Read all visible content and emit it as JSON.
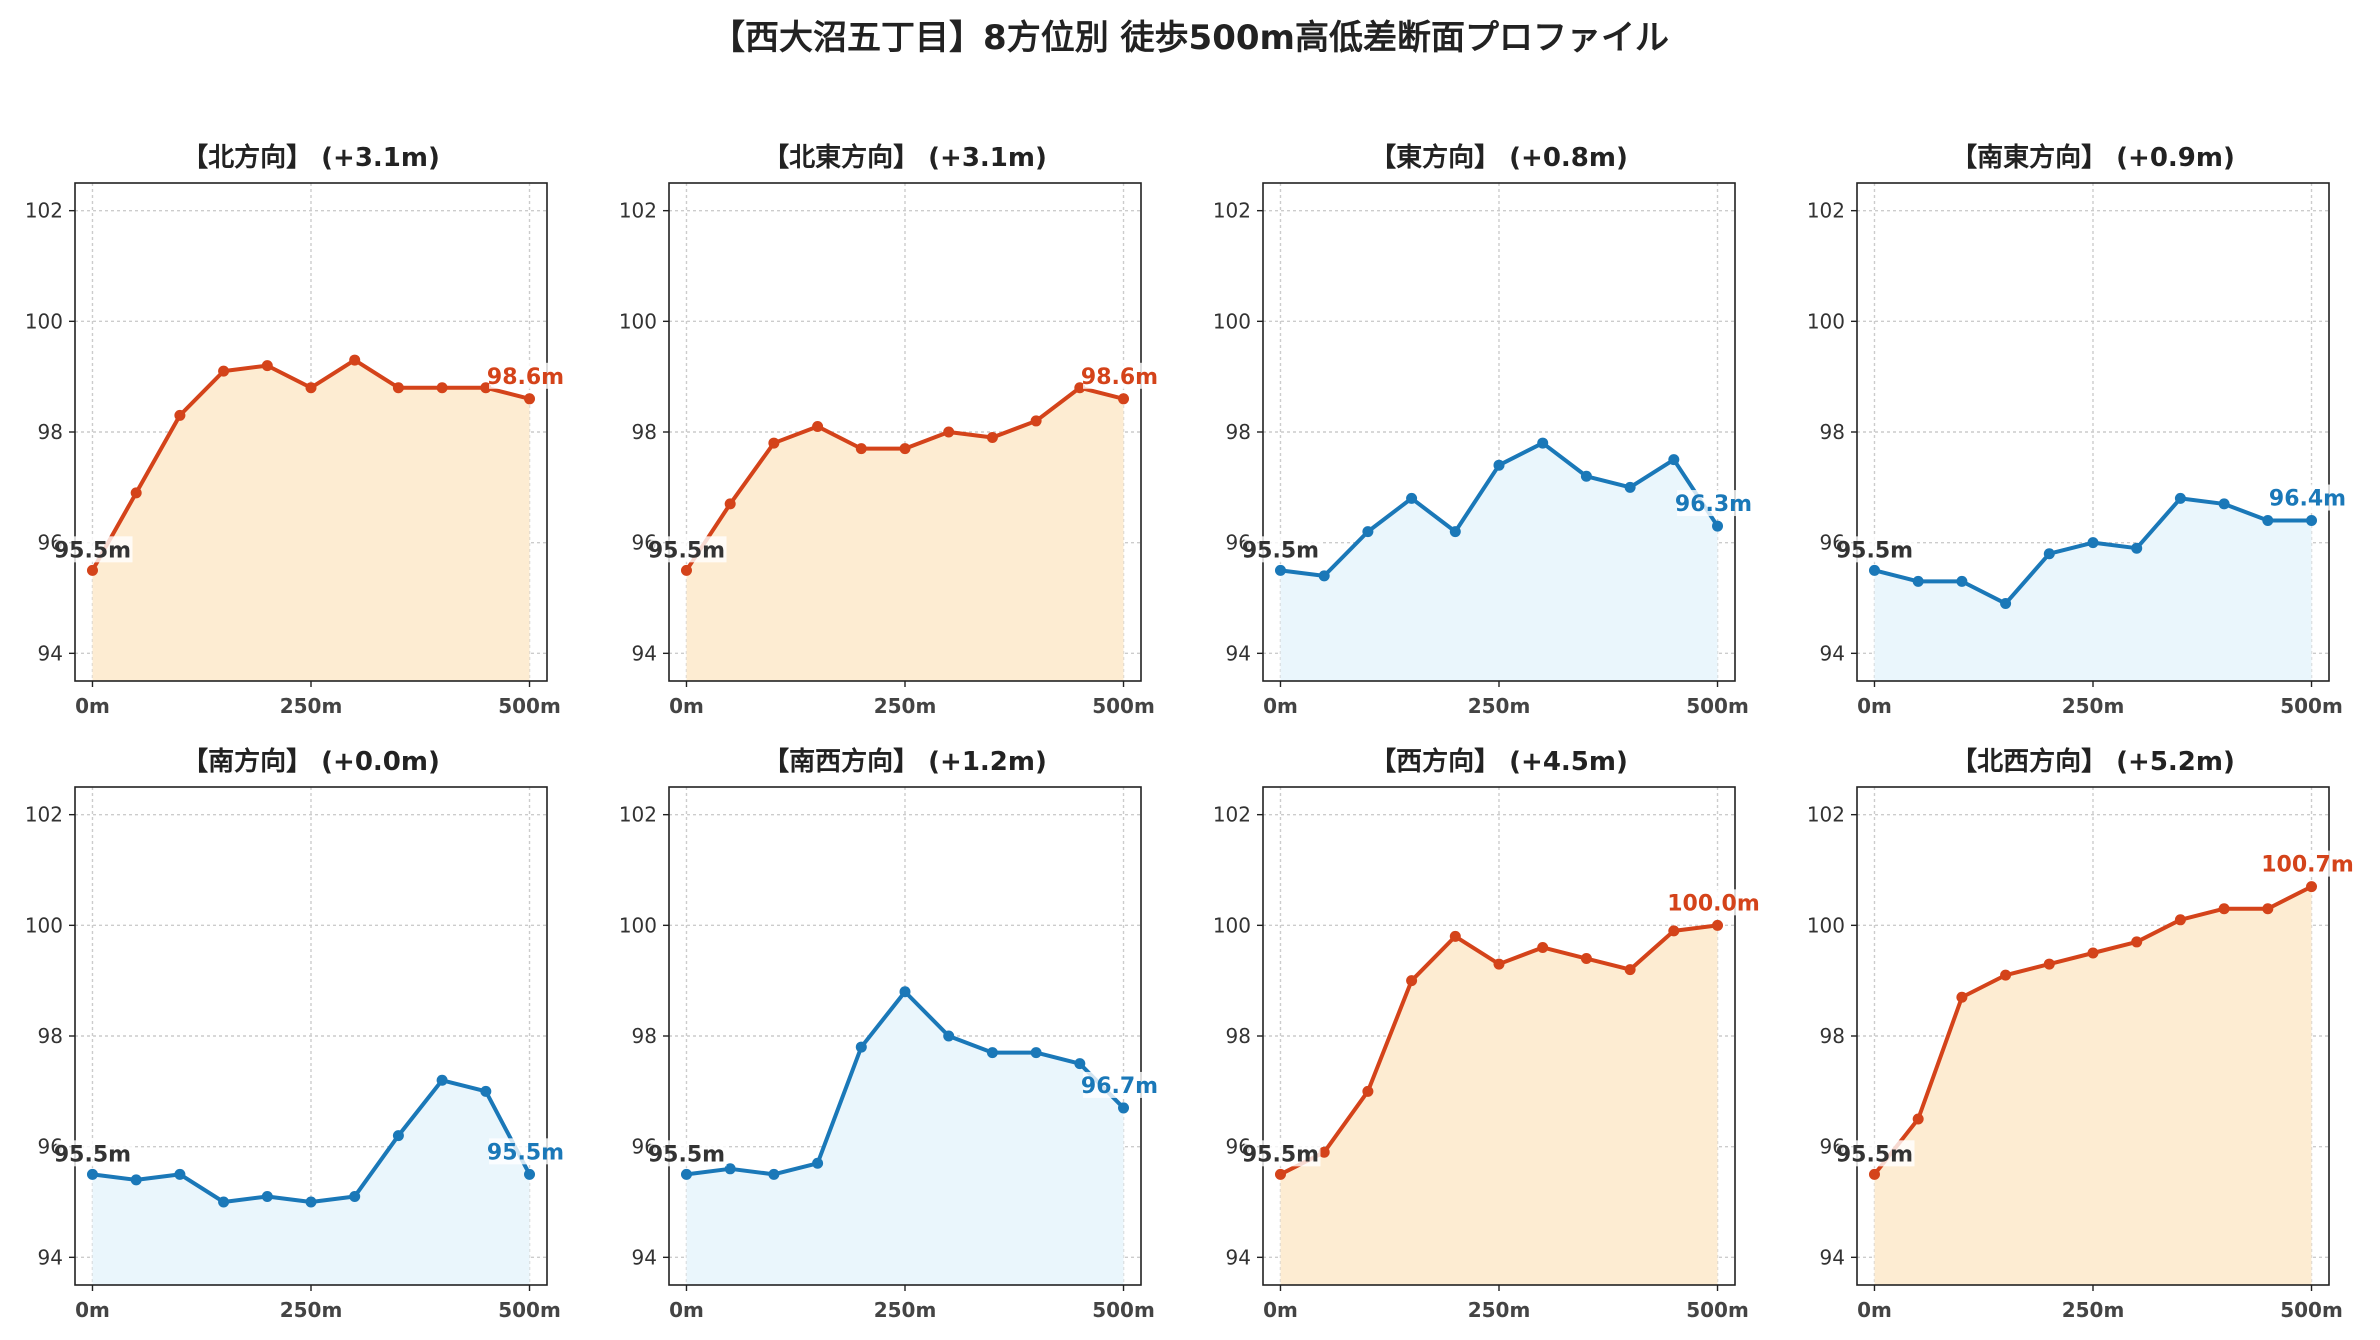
{
  "title": "【西大沼五丁目】8方位別 徒歩500m高低差断面プロファイル",
  "colors": {
    "up_line": "#d4431a",
    "up_fill": "#fdecd2",
    "down_line": "#1a78b8",
    "down_fill": "#eaf6fc",
    "grid": "#cccccc",
    "start_label": "#333333"
  },
  "chart_data": [
    {
      "type": "line",
      "title": "【北方向】 (+3.1m)",
      "trend": "up",
      "x": [
        0,
        50,
        100,
        150,
        200,
        250,
        300,
        350,
        400,
        450,
        500
      ],
      "y": [
        95.5,
        96.9,
        98.3,
        99.1,
        99.2,
        98.8,
        99.3,
        98.8,
        98.8,
        98.8,
        98.6
      ],
      "start_label": "95.5m",
      "end_label": "98.6m",
      "xticks": [
        "0m",
        "250m",
        "500m"
      ],
      "yticks": [
        94,
        96,
        98,
        100,
        102
      ],
      "xlim": [
        -20,
        520
      ],
      "ylim": [
        93.5,
        102.5
      ],
      "grid": true
    },
    {
      "type": "line",
      "title": "【北東方向】 (+3.1m)",
      "trend": "up",
      "x": [
        0,
        50,
        100,
        150,
        200,
        250,
        300,
        350,
        400,
        450,
        500
      ],
      "y": [
        95.5,
        96.7,
        97.8,
        98.1,
        97.7,
        97.7,
        98.0,
        97.9,
        98.2,
        98.8,
        98.6
      ],
      "start_label": "95.5m",
      "end_label": "98.6m",
      "xticks": [
        "0m",
        "250m",
        "500m"
      ],
      "yticks": [
        94,
        96,
        98,
        100,
        102
      ],
      "xlim": [
        -20,
        520
      ],
      "ylim": [
        93.5,
        102.5
      ],
      "grid": true
    },
    {
      "type": "line",
      "title": "【東方向】 (+0.8m)",
      "trend": "down",
      "x": [
        0,
        50,
        100,
        150,
        200,
        250,
        300,
        350,
        400,
        450,
        500
      ],
      "y": [
        95.5,
        95.4,
        96.2,
        96.8,
        96.2,
        97.4,
        97.8,
        97.2,
        97.0,
        97.5,
        96.3
      ],
      "start_label": "95.5m",
      "end_label": "96.3m",
      "xticks": [
        "0m",
        "250m",
        "500m"
      ],
      "yticks": [
        94,
        96,
        98,
        100,
        102
      ],
      "xlim": [
        -20,
        520
      ],
      "ylim": [
        93.5,
        102.5
      ],
      "grid": true
    },
    {
      "type": "line",
      "title": "【南東方向】 (+0.9m)",
      "trend": "down",
      "x": [
        0,
        50,
        100,
        150,
        200,
        250,
        300,
        350,
        400,
        450,
        500
      ],
      "y": [
        95.5,
        95.3,
        95.3,
        94.9,
        95.8,
        96.0,
        95.9,
        96.8,
        96.7,
        96.4,
        96.4
      ],
      "start_label": "95.5m",
      "end_label": "96.4m",
      "xticks": [
        "0m",
        "250m",
        "500m"
      ],
      "yticks": [
        94,
        96,
        98,
        100,
        102
      ],
      "xlim": [
        -20,
        520
      ],
      "ylim": [
        93.5,
        102.5
      ],
      "grid": true
    },
    {
      "type": "line",
      "title": "【南方向】 (+0.0m)",
      "trend": "down",
      "x": [
        0,
        50,
        100,
        150,
        200,
        250,
        300,
        350,
        400,
        450,
        500
      ],
      "y": [
        95.5,
        95.4,
        95.5,
        95.0,
        95.1,
        95.0,
        95.1,
        96.2,
        97.2,
        97.0,
        95.5
      ],
      "start_label": "95.5m",
      "end_label": "95.5m",
      "xticks": [
        "0m",
        "250m",
        "500m"
      ],
      "yticks": [
        94,
        96,
        98,
        100,
        102
      ],
      "xlim": [
        -20,
        520
      ],
      "ylim": [
        93.5,
        102.5
      ],
      "grid": true
    },
    {
      "type": "line",
      "title": "【南西方向】 (+1.2m)",
      "trend": "down",
      "x": [
        0,
        50,
        100,
        150,
        200,
        250,
        300,
        350,
        400,
        450,
        500
      ],
      "y": [
        95.5,
        95.6,
        95.5,
        95.7,
        97.8,
        98.8,
        98.0,
        97.7,
        97.7,
        97.5,
        96.7
      ],
      "start_label": "95.5m",
      "end_label": "96.7m",
      "xticks": [
        "0m",
        "250m",
        "500m"
      ],
      "yticks": [
        94,
        96,
        98,
        100,
        102
      ],
      "xlim": [
        -20,
        520
      ],
      "ylim": [
        93.5,
        102.5
      ],
      "grid": true
    },
    {
      "type": "line",
      "title": "【西方向】 (+4.5m)",
      "trend": "up",
      "x": [
        0,
        50,
        100,
        150,
        200,
        250,
        300,
        350,
        400,
        450,
        500
      ],
      "y": [
        95.5,
        95.9,
        97.0,
        99.0,
        99.8,
        99.3,
        99.6,
        99.4,
        99.2,
        99.9,
        100.0
      ],
      "start_label": "95.5m",
      "end_label": "100.0m",
      "xticks": [
        "0m",
        "250m",
        "500m"
      ],
      "yticks": [
        94,
        96,
        98,
        100,
        102
      ],
      "xlim": [
        -20,
        520
      ],
      "ylim": [
        93.5,
        102.5
      ],
      "grid": true
    },
    {
      "type": "line",
      "title": "【北西方向】 (+5.2m)",
      "trend": "up",
      "x": [
        0,
        50,
        100,
        150,
        200,
        250,
        300,
        350,
        400,
        450,
        500
      ],
      "y": [
        95.5,
        96.5,
        98.7,
        99.1,
        99.3,
        99.5,
        99.7,
        100.1,
        100.3,
        100.3,
        100.7
      ],
      "start_label": "95.5m",
      "end_label": "100.7m",
      "xticks": [
        "0m",
        "250m",
        "500m"
      ],
      "yticks": [
        94,
        96,
        98,
        100,
        102
      ],
      "xlim": [
        -20,
        520
      ],
      "ylim": [
        93.5,
        102.5
      ],
      "grid": true
    }
  ]
}
